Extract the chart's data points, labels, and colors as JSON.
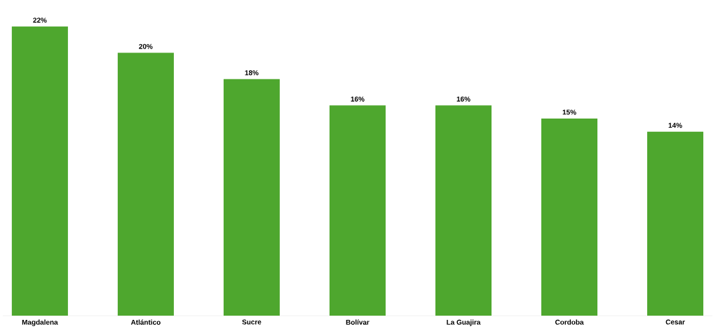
{
  "chart_data": {
    "type": "bar",
    "categories": [
      "Magdalena",
      "Atlántico",
      "Sucre",
      "Bolívar",
      "La Guajira",
      "Cordoba",
      "Cesar"
    ],
    "values": [
      22,
      20,
      18,
      16,
      16,
      15,
      14
    ],
    "value_labels": [
      "22%",
      "20%",
      "18%",
      "16%",
      "16%",
      "15%",
      "14%"
    ],
    "color": "#4ea72e"
  }
}
